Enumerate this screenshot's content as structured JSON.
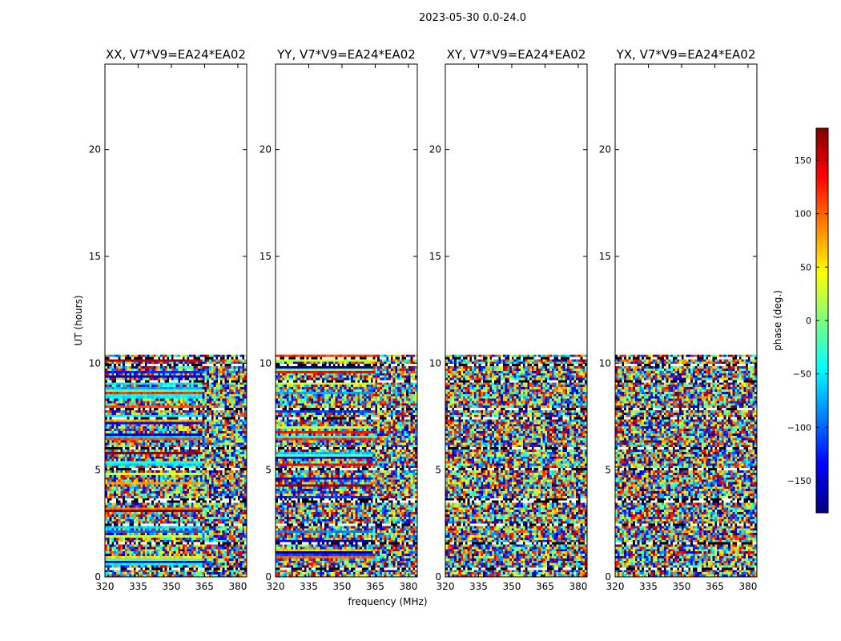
{
  "suptitle": "2023-05-30 0.0-24.0",
  "chart_data": {
    "type": "heatmap",
    "title": "2023-05-30 0.0-24.0",
    "xlabel": "frequency (MHz)",
    "ylabel": "UT (hours)",
    "xlim": [
      320,
      384
    ],
    "ylim": [
      0,
      24
    ],
    "xticks": [
      320,
      335,
      350,
      365,
      380
    ],
    "yticks": [
      0,
      5,
      10,
      15,
      20
    ],
    "data_extent_hours": [
      0,
      10.4
    ],
    "panels": [
      {
        "title": "XX, V7*V9=EA24*EA02",
        "pol": "XX"
      },
      {
        "title": "YY, V7*V9=EA24*EA02",
        "pol": "YY"
      },
      {
        "title": "XY, V7*V9=EA24*EA02",
        "pol": "XY"
      },
      {
        "title": "YX, V7*V9=EA24*EA02",
        "pol": "YX"
      }
    ],
    "colorbar": {
      "label": "phase (deg.)",
      "vmin": -180,
      "vmax": 180,
      "ticks": [
        -150,
        -100,
        -50,
        0,
        50,
        100,
        150
      ],
      "tick_labels": [
        "−150",
        "−100",
        "−50",
        "0",
        "50",
        "100",
        "150"
      ],
      "colormap": "jet",
      "colors": [
        "#00007f",
        "#0000ff",
        "#007fff",
        "#00ffff",
        "#7fff7f",
        "#ffff00",
        "#ff7f00",
        "#ff0000",
        "#7f0000"
      ]
    }
  }
}
